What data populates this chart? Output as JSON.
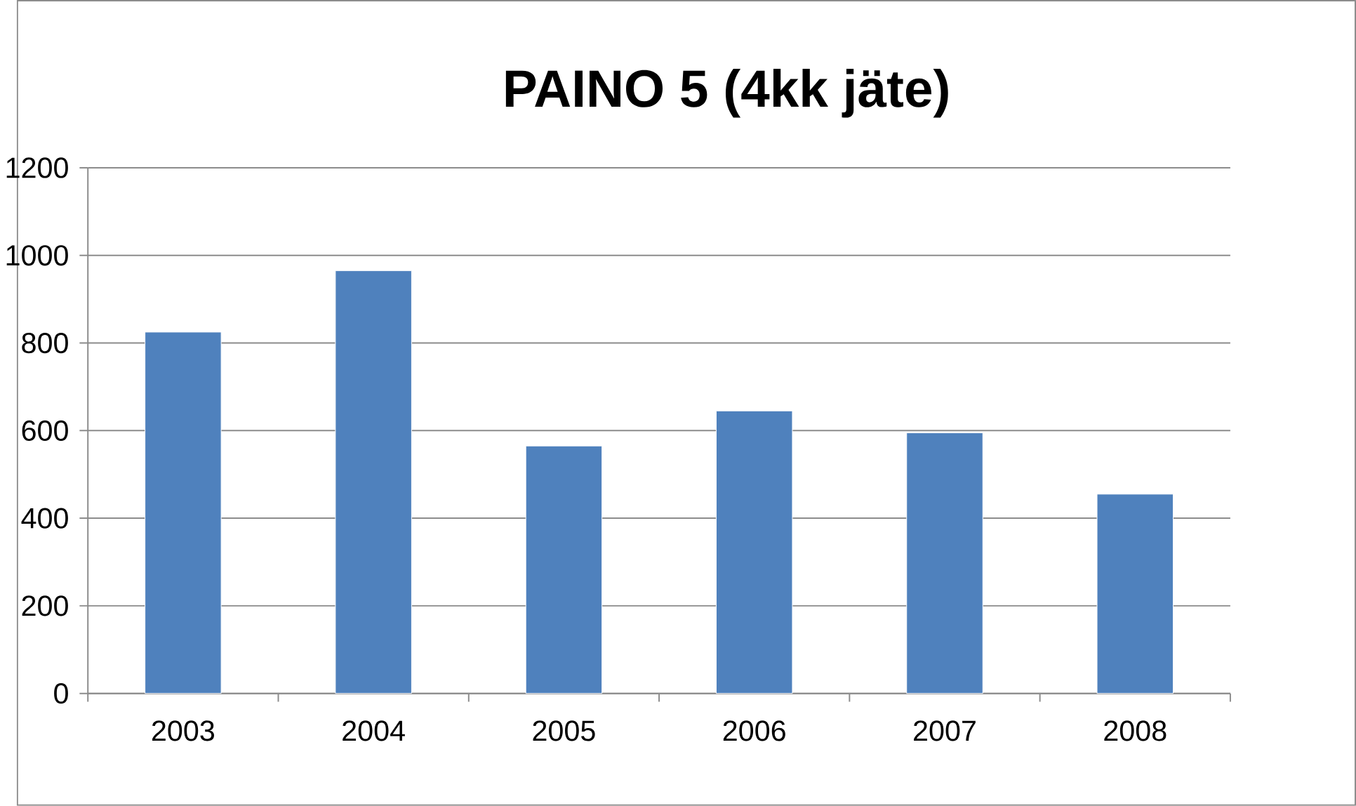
{
  "chart_data": {
    "type": "bar",
    "title": "PAINO 5 (4kk jäte)",
    "categories": [
      "2003",
      "2004",
      "2005",
      "2006",
      "2007",
      "2008"
    ],
    "values": [
      825,
      965,
      565,
      645,
      595,
      455
    ],
    "color": "#4f81bd",
    "ylim": [
      0,
      1200
    ],
    "yticks": [
      0,
      200,
      400,
      600,
      800,
      1000,
      1200
    ],
    "grid": "y"
  }
}
